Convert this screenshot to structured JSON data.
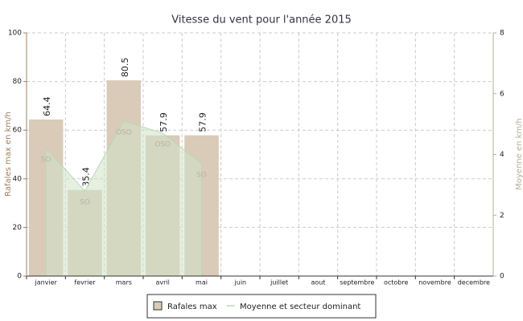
{
  "chart_data": {
    "type": "bar",
    "title": "Vitesse du vent pour l'année 2015",
    "y_label": "Rafales max en km/h",
    "y2_label": "Moyenne en km/h",
    "categories": [
      "janvier",
      "fevrier",
      "mars",
      "avril",
      "mai",
      "juin",
      "juillet",
      "aout",
      "septembre",
      "octobre",
      "novembre",
      "decembre"
    ],
    "series": [
      {
        "name": "Rafales max",
        "type": "bar",
        "color": "#d9cbb8",
        "values": [
          64.4,
          35.4,
          80.5,
          57.9,
          57.9,
          null,
          null,
          null,
          null,
          null,
          null,
          null
        ]
      },
      {
        "name": "Moyenne et secteur dominant",
        "type": "area",
        "axis": "y2",
        "color": "#cfe3c8",
        "values": [
          4.2,
          2.8,
          5.1,
          4.7,
          3.7,
          null,
          null,
          null,
          null,
          null,
          null,
          null
        ],
        "point_labels": [
          "SO",
          "SO",
          "OSO",
          "OSO",
          "SO",
          null,
          null,
          null,
          null,
          null,
          null,
          null
        ]
      }
    ],
    "ylim": [
      0,
      100
    ],
    "yticks": [
      0,
      20,
      40,
      60,
      80,
      100
    ],
    "y2lim": [
      0,
      8
    ],
    "y2ticks": [
      0,
      2,
      4,
      6,
      8
    ],
    "grid": true,
    "legend": "bottom"
  }
}
